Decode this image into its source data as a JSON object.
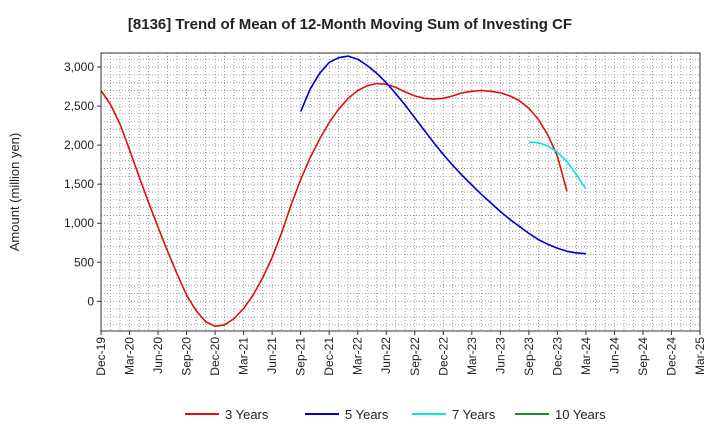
{
  "chart_data": {
    "type": "line",
    "title": "[8136]  Trend of Mean of 12-Month Moving Sum of Investing CF",
    "ylabel": "Amount (million yen)",
    "xlabel": "",
    "ylim": [
      -380,
      3180
    ],
    "yticks": [
      0,
      500,
      1000,
      1500,
      2000,
      2500,
      3000
    ],
    "ytick_labels": [
      "0",
      "500",
      "1,000",
      "1,500",
      "2,000",
      "2,500",
      "3,000"
    ],
    "x_tick_labels": [
      "Dec-19",
      "Mar-20",
      "Jun-20",
      "Sep-20",
      "Dec-20",
      "Mar-21",
      "Jun-21",
      "Sep-21",
      "Dec-21",
      "Mar-22",
      "Jun-22",
      "Sep-22",
      "Dec-22",
      "Mar-23",
      "Jun-23",
      "Sep-23",
      "Dec-23",
      "Mar-24",
      "Jun-24",
      "Sep-24",
      "Dec-24",
      "Mar-25"
    ],
    "grid": true,
    "legend_position": "bottom",
    "series": [
      {
        "name": "3 Years",
        "color": "#dd1111",
        "start_index": 0,
        "values": [
          2700,
          2520,
          2270,
          1940,
          1600,
          1270,
          950,
          640,
          350,
          80,
          -120,
          -260,
          -320,
          -300,
          -220,
          -90,
          80,
          300,
          560,
          880,
          1240,
          1560,
          1840,
          2080,
          2290,
          2460,
          2600,
          2700,
          2760,
          2790,
          2780,
          2740,
          2680,
          2630,
          2600,
          2590,
          2600,
          2630,
          2670,
          2690,
          2700,
          2690,
          2670,
          2630,
          2570,
          2470,
          2330,
          2130,
          1860,
          1410
        ]
      },
      {
        "name": "5 Years",
        "color": "#0000cc",
        "start_index": 21,
        "values": [
          2430,
          2720,
          2920,
          3060,
          3120,
          3140,
          3100,
          3020,
          2920,
          2800,
          2660,
          2510,
          2350,
          2190,
          2030,
          1880,
          1740,
          1610,
          1490,
          1370,
          1260,
          1150,
          1050,
          960,
          870,
          790,
          730,
          680,
          640,
          620,
          610
        ]
      },
      {
        "name": "7 Years",
        "color": "#00e5e5",
        "start_index": 45,
        "values": [
          2040,
          2030,
          1990,
          1910,
          1790,
          1620,
          1440
        ]
      },
      {
        "name": "10 Years",
        "color": "#228b22",
        "start_index": 45,
        "values": []
      }
    ]
  }
}
